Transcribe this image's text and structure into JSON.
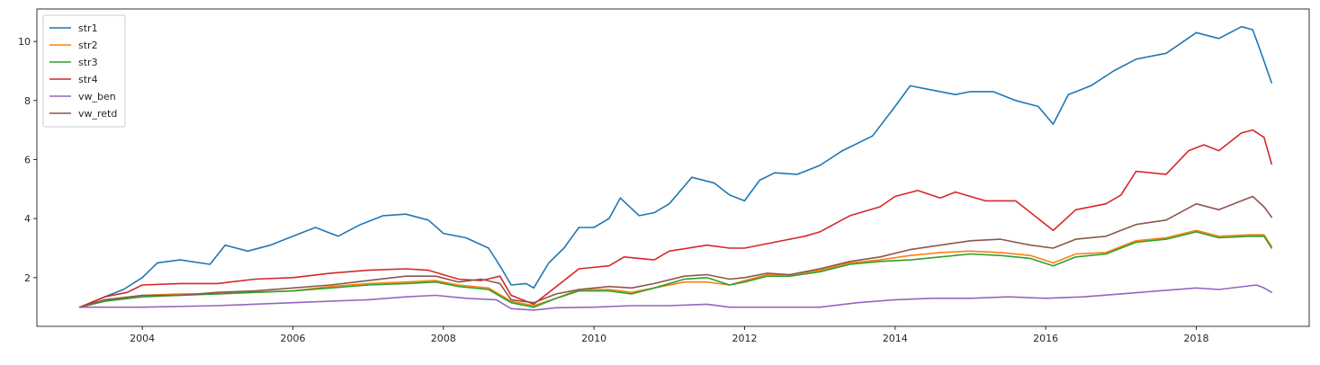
{
  "chart_data": {
    "type": "line",
    "title": "",
    "xlabel": "",
    "ylabel": "",
    "xlim": [
      2002.6,
      2019.5
    ],
    "ylim": [
      0.35,
      11.1
    ],
    "xticks": [
      2004,
      2006,
      2008,
      2010,
      2012,
      2014,
      2016,
      2018
    ],
    "yticks": [
      2,
      4,
      6,
      8,
      10
    ],
    "grid": false,
    "legend_position": "top-left",
    "series": [
      {
        "name": "str1",
        "color": "#1f77b4",
        "points": [
          [
            2003.17,
            1.0
          ],
          [
            2003.5,
            1.35
          ],
          [
            2003.75,
            1.6
          ],
          [
            2004.0,
            2.0
          ],
          [
            2004.2,
            2.5
          ],
          [
            2004.5,
            2.6
          ],
          [
            2004.9,
            2.45
          ],
          [
            2005.1,
            3.1
          ],
          [
            2005.4,
            2.9
          ],
          [
            2005.7,
            3.1
          ],
          [
            2006.0,
            3.4
          ],
          [
            2006.3,
            3.7
          ],
          [
            2006.6,
            3.4
          ],
          [
            2006.9,
            3.8
          ],
          [
            2007.2,
            4.1
          ],
          [
            2007.5,
            4.15
          ],
          [
            2007.8,
            3.95
          ],
          [
            2008.0,
            3.5
          ],
          [
            2008.3,
            3.35
          ],
          [
            2008.6,
            3.0
          ],
          [
            2008.75,
            2.4
          ],
          [
            2008.9,
            1.75
          ],
          [
            2009.1,
            1.8
          ],
          [
            2009.2,
            1.65
          ],
          [
            2009.4,
            2.5
          ],
          [
            2009.6,
            3.0
          ],
          [
            2009.8,
            3.7
          ],
          [
            2010.0,
            3.7
          ],
          [
            2010.2,
            4.0
          ],
          [
            2010.35,
            4.7
          ],
          [
            2010.6,
            4.1
          ],
          [
            2010.8,
            4.2
          ],
          [
            2011.0,
            4.5
          ],
          [
            2011.3,
            5.4
          ],
          [
            2011.6,
            5.2
          ],
          [
            2011.8,
            4.8
          ],
          [
            2012.0,
            4.6
          ],
          [
            2012.2,
            5.3
          ],
          [
            2012.4,
            5.55
          ],
          [
            2012.7,
            5.5
          ],
          [
            2013.0,
            5.8
          ],
          [
            2013.3,
            6.3
          ],
          [
            2013.7,
            6.8
          ],
          [
            2014.0,
            7.8
          ],
          [
            2014.2,
            8.5
          ],
          [
            2014.5,
            8.35
          ],
          [
            2014.8,
            8.2
          ],
          [
            2015.0,
            8.3
          ],
          [
            2015.3,
            8.3
          ],
          [
            2015.6,
            8.0
          ],
          [
            2015.9,
            7.8
          ],
          [
            2016.1,
            7.2
          ],
          [
            2016.3,
            8.2
          ],
          [
            2016.6,
            8.5
          ],
          [
            2016.9,
            9.0
          ],
          [
            2017.2,
            9.4
          ],
          [
            2017.6,
            9.6
          ],
          [
            2018.0,
            10.3
          ],
          [
            2018.3,
            10.1
          ],
          [
            2018.6,
            10.5
          ],
          [
            2018.75,
            10.4
          ],
          [
            2018.85,
            9.7
          ],
          [
            2019.0,
            8.6
          ]
        ]
      },
      {
        "name": "str2",
        "color": "#ff7f0e",
        "points": [
          [
            2003.17,
            1.0
          ],
          [
            2003.5,
            1.2
          ],
          [
            2004.0,
            1.4
          ],
          [
            2004.5,
            1.45
          ],
          [
            2005.0,
            1.45
          ],
          [
            2005.5,
            1.5
          ],
          [
            2006.0,
            1.55
          ],
          [
            2006.5,
            1.7
          ],
          [
            2007.0,
            1.8
          ],
          [
            2007.5,
            1.85
          ],
          [
            2007.9,
            1.9
          ],
          [
            2008.2,
            1.75
          ],
          [
            2008.6,
            1.65
          ],
          [
            2008.9,
            1.2
          ],
          [
            2009.2,
            1.05
          ],
          [
            2009.5,
            1.3
          ],
          [
            2009.8,
            1.6
          ],
          [
            2010.2,
            1.6
          ],
          [
            2010.5,
            1.5
          ],
          [
            2010.8,
            1.65
          ],
          [
            2011.2,
            1.85
          ],
          [
            2011.5,
            1.85
          ],
          [
            2011.8,
            1.75
          ],
          [
            2012.0,
            1.9
          ],
          [
            2012.3,
            2.1
          ],
          [
            2012.6,
            2.1
          ],
          [
            2013.0,
            2.25
          ],
          [
            2013.4,
            2.5
          ],
          [
            2013.8,
            2.6
          ],
          [
            2014.2,
            2.75
          ],
          [
            2014.6,
            2.85
          ],
          [
            2015.0,
            2.9
          ],
          [
            2015.4,
            2.85
          ],
          [
            2015.8,
            2.75
          ],
          [
            2016.1,
            2.5
          ],
          [
            2016.4,
            2.8
          ],
          [
            2016.8,
            2.85
          ],
          [
            2017.2,
            3.25
          ],
          [
            2017.6,
            3.35
          ],
          [
            2018.0,
            3.6
          ],
          [
            2018.3,
            3.4
          ],
          [
            2018.7,
            3.45
          ],
          [
            2018.9,
            3.45
          ],
          [
            2019.0,
            3.05
          ]
        ]
      },
      {
        "name": "str3",
        "color": "#2ca02c",
        "points": [
          [
            2003.17,
            1.0
          ],
          [
            2003.5,
            1.2
          ],
          [
            2004.0,
            1.35
          ],
          [
            2004.5,
            1.4
          ],
          [
            2005.0,
            1.45
          ],
          [
            2005.5,
            1.5
          ],
          [
            2006.0,
            1.55
          ],
          [
            2006.5,
            1.65
          ],
          [
            2007.0,
            1.75
          ],
          [
            2007.5,
            1.8
          ],
          [
            2007.9,
            1.85
          ],
          [
            2008.2,
            1.7
          ],
          [
            2008.6,
            1.6
          ],
          [
            2008.9,
            1.15
          ],
          [
            2009.2,
            1.0
          ],
          [
            2009.5,
            1.3
          ],
          [
            2009.8,
            1.55
          ],
          [
            2010.2,
            1.55
          ],
          [
            2010.5,
            1.45
          ],
          [
            2010.8,
            1.65
          ],
          [
            2011.2,
            1.95
          ],
          [
            2011.5,
            2.0
          ],
          [
            2011.8,
            1.75
          ],
          [
            2012.0,
            1.85
          ],
          [
            2012.3,
            2.05
          ],
          [
            2012.6,
            2.05
          ],
          [
            2013.0,
            2.2
          ],
          [
            2013.4,
            2.45
          ],
          [
            2013.8,
            2.55
          ],
          [
            2014.2,
            2.6
          ],
          [
            2014.6,
            2.7
          ],
          [
            2015.0,
            2.8
          ],
          [
            2015.4,
            2.75
          ],
          [
            2015.8,
            2.65
          ],
          [
            2016.1,
            2.4
          ],
          [
            2016.4,
            2.7
          ],
          [
            2016.8,
            2.8
          ],
          [
            2017.2,
            3.2
          ],
          [
            2017.6,
            3.3
          ],
          [
            2018.0,
            3.55
          ],
          [
            2018.3,
            3.35
          ],
          [
            2018.7,
            3.4
          ],
          [
            2018.9,
            3.4
          ],
          [
            2019.0,
            3.0
          ]
        ]
      },
      {
        "name": "str4",
        "color": "#d62728",
        "points": [
          [
            2003.17,
            1.0
          ],
          [
            2003.5,
            1.35
          ],
          [
            2003.8,
            1.5
          ],
          [
            2004.0,
            1.75
          ],
          [
            2004.5,
            1.8
          ],
          [
            2005.0,
            1.8
          ],
          [
            2005.5,
            1.95
          ],
          [
            2006.0,
            2.0
          ],
          [
            2006.5,
            2.15
          ],
          [
            2007.0,
            2.25
          ],
          [
            2007.5,
            2.3
          ],
          [
            2007.8,
            2.25
          ],
          [
            2008.2,
            1.95
          ],
          [
            2008.5,
            1.9
          ],
          [
            2008.75,
            2.05
          ],
          [
            2008.9,
            1.4
          ],
          [
            2009.2,
            1.1
          ],
          [
            2009.5,
            1.7
          ],
          [
            2009.8,
            2.3
          ],
          [
            2010.2,
            2.4
          ],
          [
            2010.4,
            2.7
          ],
          [
            2010.8,
            2.6
          ],
          [
            2011.0,
            2.9
          ],
          [
            2011.5,
            3.1
          ],
          [
            2011.8,
            3.0
          ],
          [
            2012.0,
            3.0
          ],
          [
            2012.4,
            3.2
          ],
          [
            2012.8,
            3.4
          ],
          [
            2013.0,
            3.55
          ],
          [
            2013.4,
            4.1
          ],
          [
            2013.8,
            4.4
          ],
          [
            2014.0,
            4.75
          ],
          [
            2014.3,
            4.95
          ],
          [
            2014.6,
            4.7
          ],
          [
            2014.8,
            4.9
          ],
          [
            2015.2,
            4.6
          ],
          [
            2015.6,
            4.6
          ],
          [
            2015.9,
            4.0
          ],
          [
            2016.1,
            3.6
          ],
          [
            2016.4,
            4.3
          ],
          [
            2016.8,
            4.5
          ],
          [
            2017.0,
            4.8
          ],
          [
            2017.2,
            5.6
          ],
          [
            2017.6,
            5.5
          ],
          [
            2017.9,
            6.3
          ],
          [
            2018.1,
            6.5
          ],
          [
            2018.3,
            6.3
          ],
          [
            2018.6,
            6.9
          ],
          [
            2018.75,
            7.0
          ],
          [
            2018.9,
            6.75
          ],
          [
            2019.0,
            5.85
          ]
        ]
      },
      {
        "name": "vw_ben",
        "color": "#9467bd",
        "points": [
          [
            2003.17,
            1.0
          ],
          [
            2004.0,
            1.0
          ],
          [
            2005.0,
            1.05
          ],
          [
            2006.0,
            1.15
          ],
          [
            2007.0,
            1.25
          ],
          [
            2007.5,
            1.35
          ],
          [
            2007.9,
            1.4
          ],
          [
            2008.3,
            1.3
          ],
          [
            2008.7,
            1.25
          ],
          [
            2008.9,
            0.95
          ],
          [
            2009.2,
            0.9
          ],
          [
            2009.5,
            0.98
          ],
          [
            2010.0,
            1.0
          ],
          [
            2010.5,
            1.05
          ],
          [
            2011.0,
            1.05
          ],
          [
            2011.5,
            1.1
          ],
          [
            2011.8,
            1.0
          ],
          [
            2012.5,
            1.0
          ],
          [
            2013.0,
            1.0
          ],
          [
            2013.5,
            1.15
          ],
          [
            2014.0,
            1.25
          ],
          [
            2014.5,
            1.3
          ],
          [
            2015.0,
            1.3
          ],
          [
            2015.5,
            1.35
          ],
          [
            2016.0,
            1.3
          ],
          [
            2016.5,
            1.35
          ],
          [
            2017.0,
            1.45
          ],
          [
            2017.5,
            1.55
          ],
          [
            2018.0,
            1.65
          ],
          [
            2018.3,
            1.6
          ],
          [
            2018.8,
            1.75
          ],
          [
            2018.9,
            1.65
          ],
          [
            2019.0,
            1.5
          ]
        ]
      },
      {
        "name": "vw_retd",
        "color": "#8c564b",
        "points": [
          [
            2003.17,
            1.0
          ],
          [
            2003.5,
            1.25
          ],
          [
            2004.0,
            1.4
          ],
          [
            2004.5,
            1.4
          ],
          [
            2005.0,
            1.5
          ],
          [
            2005.5,
            1.55
          ],
          [
            2006.0,
            1.65
          ],
          [
            2006.5,
            1.75
          ],
          [
            2007.0,
            1.9
          ],
          [
            2007.5,
            2.05
          ],
          [
            2007.9,
            2.05
          ],
          [
            2008.2,
            1.85
          ],
          [
            2008.5,
            1.95
          ],
          [
            2008.75,
            1.8
          ],
          [
            2008.9,
            1.25
          ],
          [
            2009.2,
            1.15
          ],
          [
            2009.5,
            1.45
          ],
          [
            2009.8,
            1.6
          ],
          [
            2010.2,
            1.7
          ],
          [
            2010.5,
            1.65
          ],
          [
            2010.8,
            1.8
          ],
          [
            2011.2,
            2.05
          ],
          [
            2011.5,
            2.1
          ],
          [
            2011.8,
            1.95
          ],
          [
            2012.0,
            2.0
          ],
          [
            2012.3,
            2.15
          ],
          [
            2012.6,
            2.1
          ],
          [
            2013.0,
            2.3
          ],
          [
            2013.4,
            2.55
          ],
          [
            2013.8,
            2.7
          ],
          [
            2014.2,
            2.95
          ],
          [
            2014.6,
            3.1
          ],
          [
            2015.0,
            3.25
          ],
          [
            2015.4,
            3.3
          ],
          [
            2015.8,
            3.1
          ],
          [
            2016.1,
            3.0
          ],
          [
            2016.4,
            3.3
          ],
          [
            2016.8,
            3.4
          ],
          [
            2017.2,
            3.8
          ],
          [
            2017.6,
            3.95
          ],
          [
            2018.0,
            4.5
          ],
          [
            2018.3,
            4.3
          ],
          [
            2018.6,
            4.6
          ],
          [
            2018.75,
            4.75
          ],
          [
            2018.9,
            4.4
          ],
          [
            2019.0,
            4.05
          ]
        ]
      }
    ]
  }
}
